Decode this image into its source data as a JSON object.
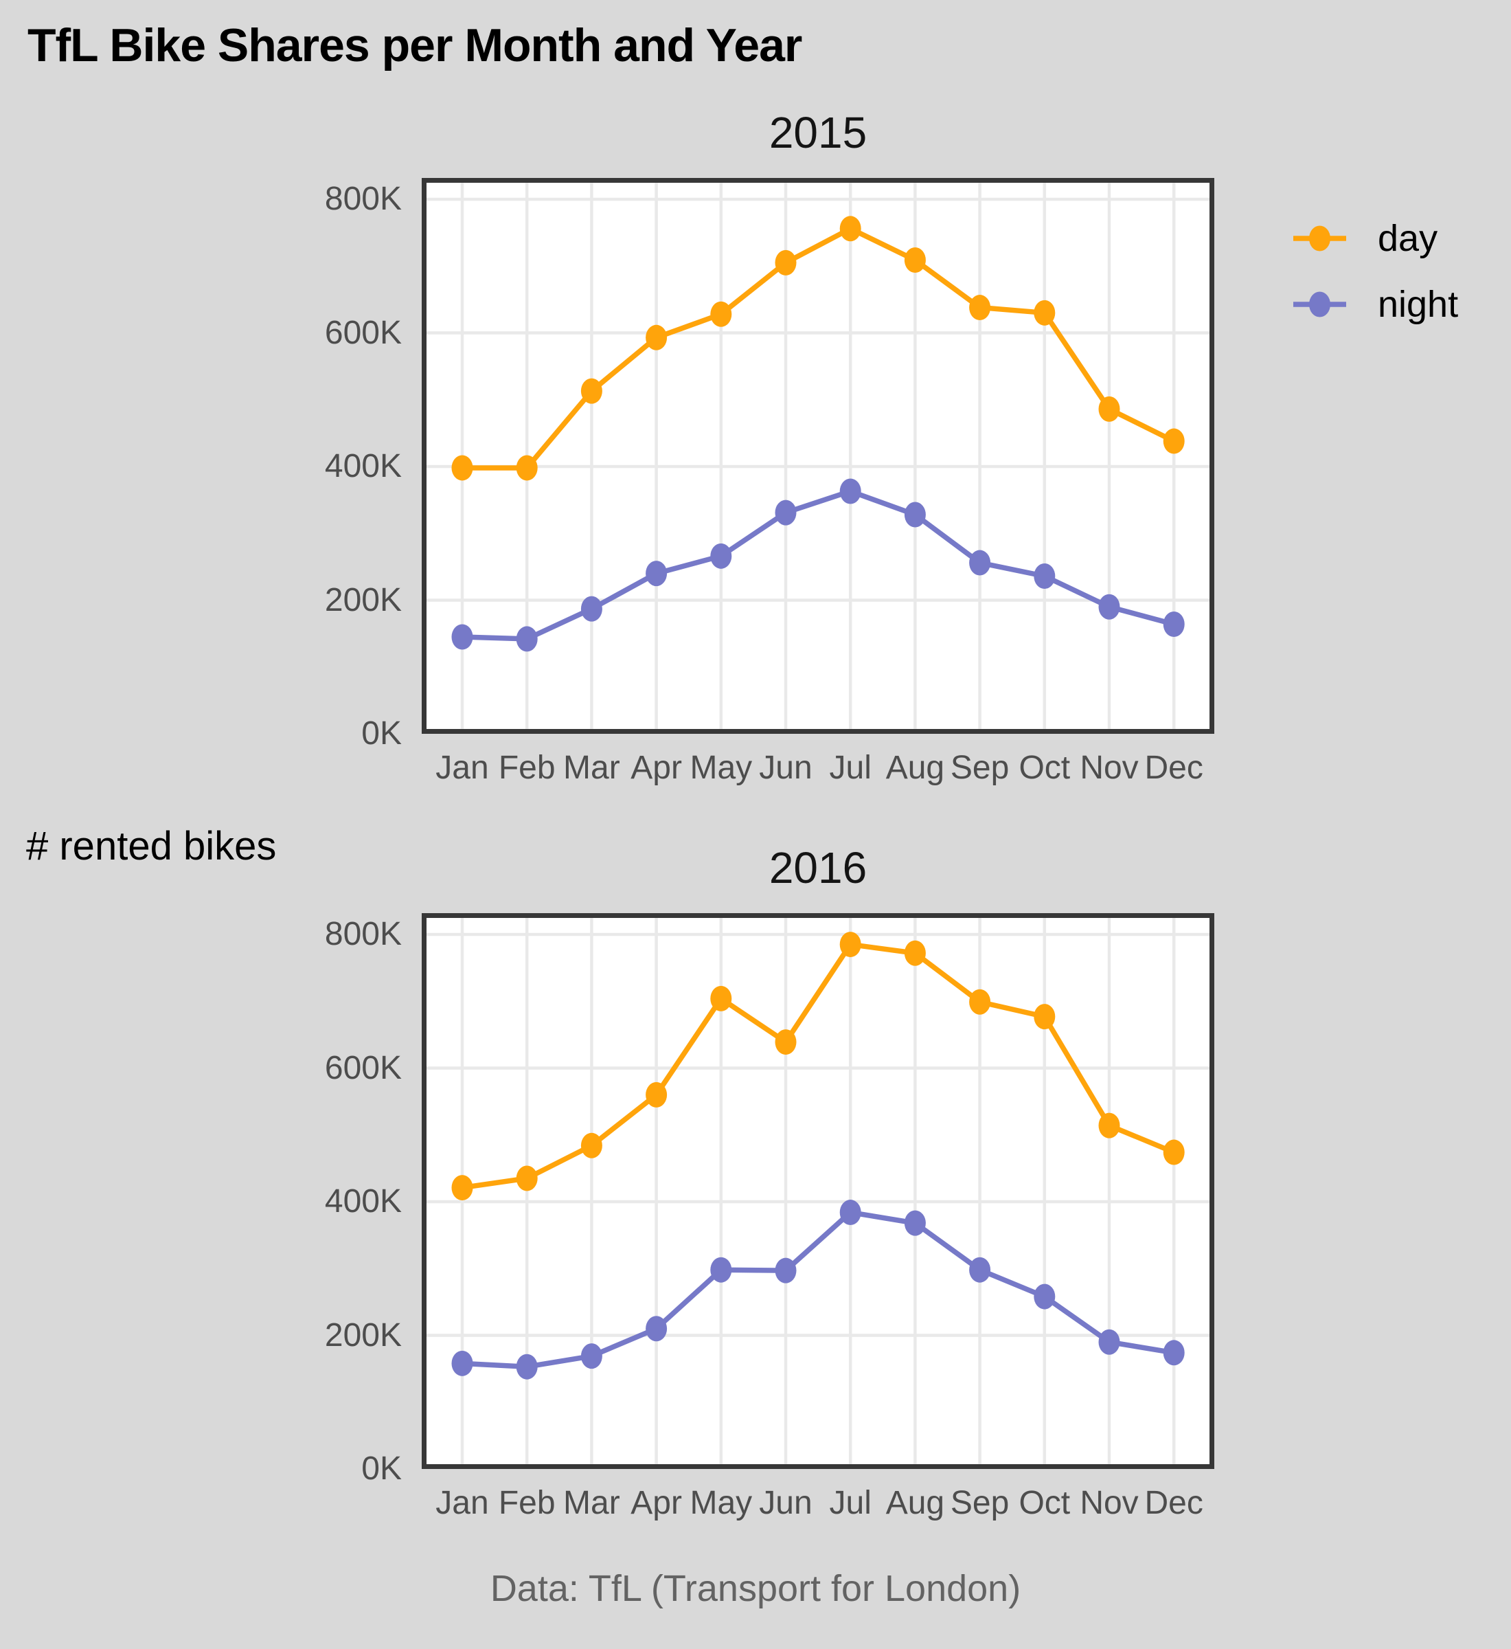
{
  "title": "TfL Bike Shares per Month and Year",
  "y_axis_label": "# rented bikes",
  "caption": "Data: TfL (Transport for London)",
  "legend": {
    "position": "right",
    "items": [
      {
        "label": "day",
        "color": "#FFA40B"
      },
      {
        "label": "night",
        "color": "#7679C8"
      }
    ]
  },
  "colors": {
    "background": "#d9d9d9",
    "panel_background": "#ffffff",
    "gridline": "#e9e9e9",
    "panel_border": "#373737",
    "axis_text": "#4d4d4d",
    "caption_text": "#636363",
    "day_series": "#FFA40B",
    "night_series": "#7679C8"
  },
  "chart_data": [
    {
      "type": "line",
      "title": "2015",
      "categories": [
        "Jan",
        "Feb",
        "Mar",
        "Apr",
        "May",
        "Jun",
        "Jul",
        "Aug",
        "Sep",
        "Oct",
        "Nov",
        "Dec"
      ],
      "series": [
        {
          "name": "day",
          "color": "#FFA40B",
          "values": [
            398,
            398,
            513,
            593,
            628,
            705,
            756,
            709,
            638,
            630,
            486,
            438
          ]
        },
        {
          "name": "night",
          "color": "#7679C8",
          "values": [
            145,
            142,
            187,
            240,
            266,
            331,
            363,
            328,
            256,
            236,
            190,
            164
          ]
        }
      ],
      "values_unit": "K",
      "yticks": [
        0,
        200,
        400,
        600,
        800
      ],
      "ytick_labels": [
        "0K",
        "200K",
        "400K",
        "600K",
        "800K"
      ],
      "ylim": [
        0,
        832
      ],
      "grid": true
    },
    {
      "type": "line",
      "title": "2016",
      "categories": [
        "Jan",
        "Feb",
        "Mar",
        "Apr",
        "May",
        "Jun",
        "Jul",
        "Aug",
        "Sep",
        "Oct",
        "Nov",
        "Dec"
      ],
      "series": [
        {
          "name": "day",
          "color": "#FFA40B",
          "values": [
            421,
            435,
            484,
            560,
            704,
            639,
            785,
            772,
            699,
            677,
            514,
            474
          ]
        },
        {
          "name": "night",
          "color": "#7679C8",
          "values": [
            158,
            153,
            169,
            210,
            298,
            297,
            384,
            368,
            298,
            258,
            190,
            174
          ]
        }
      ],
      "values_unit": "K",
      "yticks": [
        0,
        200,
        400,
        600,
        800
      ],
      "ytick_labels": [
        "0K",
        "200K",
        "400K",
        "600K",
        "800K"
      ],
      "ylim": [
        0,
        832
      ],
      "grid": true
    }
  ]
}
